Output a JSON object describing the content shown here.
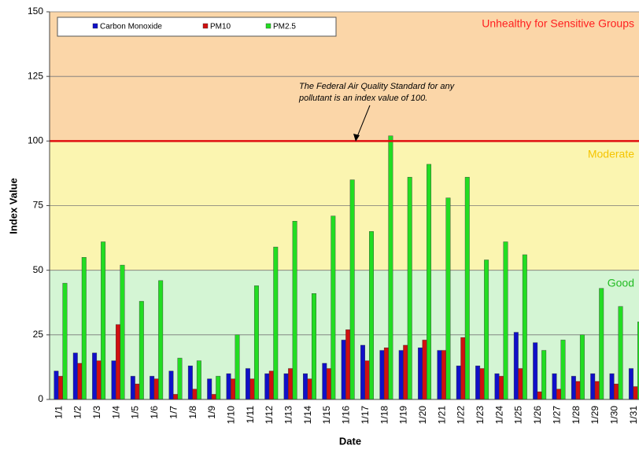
{
  "chart_data": {
    "type": "bar",
    "y_label": "Index Value",
    "x_label": "Date",
    "categories": [
      "1/1",
      "1/2",
      "1/3",
      "1/4",
      "1/5",
      "1/6",
      "1/7",
      "1/8",
      "1/9",
      "1/10",
      "1/11",
      "1/12",
      "1/13",
      "1/14",
      "1/15",
      "1/16",
      "1/17",
      "1/18",
      "1/19",
      "1/20",
      "1/21",
      "1/22",
      "1/23",
      "1/24",
      "1/25",
      "1/26",
      "1/27",
      "1/28",
      "1/29",
      "1/30",
      "1/31"
    ],
    "series": [
      {
        "name": "Carbon Monoxide",
        "color": "#1010c8",
        "values": [
          11,
          18,
          18,
          15,
          9,
          9,
          11,
          13,
          8,
          10,
          12,
          10,
          10,
          10,
          14,
          23,
          21,
          19,
          19,
          20,
          19,
          13,
          13,
          10,
          26,
          22,
          10,
          9,
          10,
          10,
          12
        ]
      },
      {
        "name": "PM10",
        "color": "#d01010",
        "values": [
          9,
          14,
          15,
          29,
          6,
          8,
          2,
          4,
          2,
          8,
          8,
          11,
          12,
          8,
          12,
          27,
          15,
          20,
          21,
          23,
          19,
          24,
          12,
          9,
          12,
          3,
          4,
          7,
          7,
          6,
          5
        ]
      },
      {
        "name": "PM2.5",
        "color": "#22dd22",
        "values": [
          45,
          55,
          61,
          52,
          38,
          46,
          16,
          15,
          9,
          25,
          44,
          59,
          69,
          41,
          71,
          85,
          65,
          102,
          86,
          91,
          78,
          86,
          54,
          61,
          56,
          19,
          23,
          25,
          43,
          36,
          30
        ]
      }
    ],
    "ylim": [
      0,
      150
    ],
    "yticks": [
      0,
      25,
      50,
      75,
      100,
      125,
      150
    ],
    "grid": true,
    "bands": [
      {
        "label": "Good",
        "from": 0,
        "to": 50,
        "color": "#d4f5d4",
        "text_color": "#22bb22"
      },
      {
        "label": "Moderate",
        "from": 50,
        "to": 100,
        "color": "#fbf5b0",
        "text_color": "#f5c400"
      },
      {
        "label": "Unhealthy for Sensitive Groups",
        "from": 100,
        "to": 150,
        "color": "#fbd6a8",
        "text_color": "#ff2020"
      }
    ],
    "reference_line": {
      "value": 100,
      "color": "#e01010"
    },
    "annotation": [
      "The Federal Air Quality Standard for any",
      "pollutant is an index value of 100."
    ]
  }
}
